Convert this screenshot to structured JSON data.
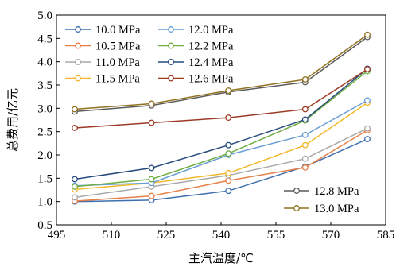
{
  "chart_data": {
    "type": "line",
    "xlabel": "主汽温度/℃",
    "ylabel": "总费用/亿元",
    "xlim": [
      495,
      585
    ],
    "ylim": [
      0.5,
      5.0
    ],
    "xticks": [
      495,
      510,
      525,
      540,
      555,
      570,
      585
    ],
    "yticks": [
      0.5,
      1.0,
      1.5,
      2.0,
      2.5,
      3.0,
      3.5,
      4.0,
      4.5,
      5.0
    ],
    "xtick_labels": [
      "495",
      "510",
      "525",
      "540",
      "555",
      "570",
      "585"
    ],
    "ytick_labels": [
      "0.5",
      "1.0",
      "1.5",
      "2.0",
      "2.5",
      "3.0",
      "3.5",
      "4.0",
      "4.5",
      "5.0"
    ],
    "x": [
      500,
      521,
      542,
      563,
      580
    ],
    "grid": false,
    "legend": [
      "top-left",
      "bottom-right"
    ],
    "series": [
      {
        "name": "10.0 MPa",
        "color": "#3f6fae",
        "values": [
          1.0,
          1.03,
          1.23,
          1.75,
          2.34
        ]
      },
      {
        "name": "10.5 MPa",
        "color": "#e8804a",
        "values": [
          1.01,
          1.12,
          1.45,
          1.73,
          2.53
        ]
      },
      {
        "name": "11.0 MPa",
        "color": "#a9a9a9",
        "values": [
          1.09,
          1.32,
          1.56,
          1.92,
          2.57
        ]
      },
      {
        "name": "11.5 MPa",
        "color": "#f2b82a",
        "values": [
          1.26,
          1.4,
          1.61,
          2.21,
          3.12
        ]
      },
      {
        "name": "12.0 MPa",
        "color": "#6a9fd5",
        "values": [
          1.34,
          1.4,
          2.0,
          2.43,
          3.17
        ]
      },
      {
        "name": "12.2 MPa",
        "color": "#72ae45",
        "values": [
          1.32,
          1.48,
          2.03,
          2.74,
          3.8
        ]
      },
      {
        "name": "12.4 MPa",
        "color": "#274a7d",
        "values": [
          1.48,
          1.72,
          2.21,
          2.76,
          3.85
        ]
      },
      {
        "name": "12.6 MPa",
        "color": "#9c3a26",
        "values": [
          2.58,
          2.69,
          2.8,
          2.98,
          3.84
        ]
      },
      {
        "name": "12.8 MPa",
        "color": "#5b5b5b",
        "values": [
          2.93,
          3.06,
          3.35,
          3.56,
          4.53
        ]
      },
      {
        "name": "13.0 MPa",
        "color": "#927221",
        "values": [
          2.98,
          3.1,
          3.38,
          3.62,
          4.58
        ]
      }
    ]
  }
}
